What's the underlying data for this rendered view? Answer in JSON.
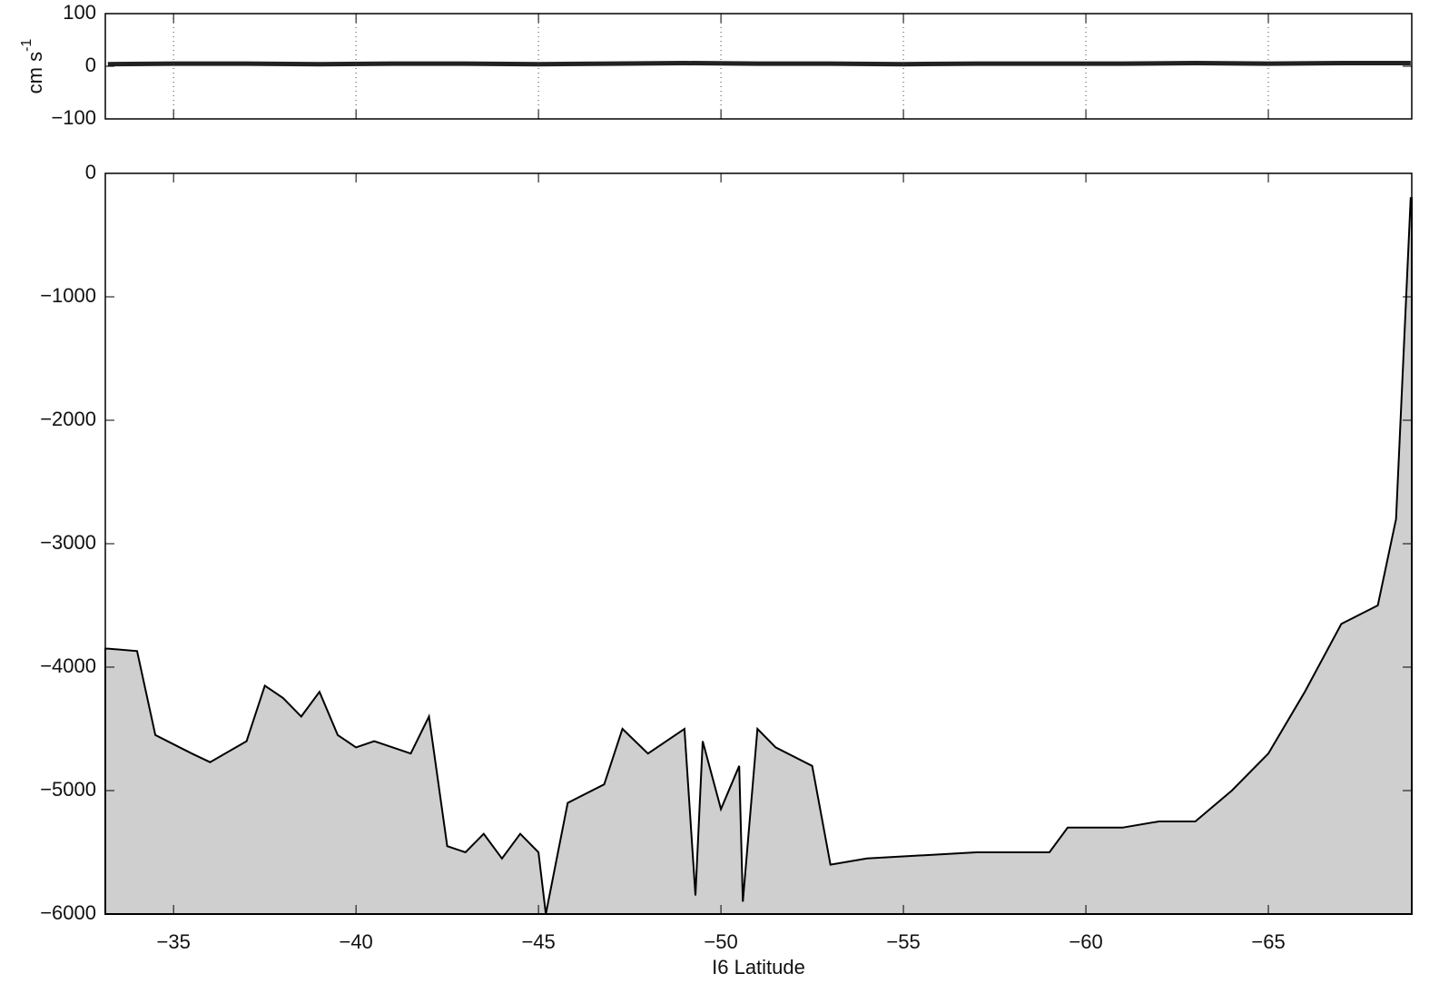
{
  "chart_data": [
    {
      "type": "line",
      "ylabel": "cm s",
      "ylabel_exponent": "-1",
      "xlim": [
        -33.13,
        -68.93
      ],
      "ylim": [
        -100,
        100
      ],
      "yticks": [
        100,
        0,
        {
          "value": -100,
          "label": "−100"
        }
      ],
      "xticks": [
        -35,
        -40,
        -45,
        -50,
        -55,
        -60,
        -65
      ],
      "grid": "dotted",
      "x": [
        -33.2,
        -35,
        -37,
        -39,
        -41,
        -43,
        -45,
        -47,
        -49,
        -51,
        -53,
        -55,
        -57,
        -59,
        -61,
        -63,
        -65,
        -67,
        -68.9
      ],
      "series": [
        {
          "color": "#222",
          "values": [
            4,
            5,
            5,
            4,
            5,
            5,
            4,
            5,
            6,
            5,
            5,
            4,
            5,
            5,
            5,
            6,
            5,
            6,
            6
          ]
        }
      ]
    },
    {
      "type": "area",
      "xlabel": "I6 Latitude",
      "xlim": [
        -33.13,
        -68.93
      ],
      "ylim": [
        -6000,
        0
      ],
      "yticks": [
        0,
        {
          "value": -1000,
          "label": "−1000"
        },
        {
          "value": -2000,
          "label": "−2000"
        },
        {
          "value": -3000,
          "label": "−3000"
        },
        {
          "value": -4000,
          "label": "−4000"
        },
        {
          "value": -5000,
          "label": "−5000"
        },
        {
          "value": -6000,
          "label": "−6000"
        }
      ],
      "xticks": [
        {
          "value": -35,
          "label": "−35"
        },
        {
          "value": -40,
          "label": "−40"
        },
        {
          "value": -45,
          "label": "−45"
        },
        {
          "value": -50,
          "label": "−50"
        },
        {
          "value": -55,
          "label": "−55"
        },
        {
          "value": -60,
          "label": "−60"
        },
        {
          "value": -65,
          "label": "−65"
        }
      ],
      "x": [
        -33.2,
        -34,
        -34.5,
        -35.5,
        -36,
        -37,
        -37.5,
        -38,
        -38.5,
        -39,
        -39.5,
        -40,
        -40.5,
        -41.5,
        -42,
        -42.5,
        -43,
        -43.5,
        -44,
        -44.5,
        -45,
        -45.2,
        -45.8,
        -46.8,
        -47.3,
        -48,
        -49,
        -49.3,
        -49.5,
        -50,
        -50.5,
        -50.6,
        -51,
        -51.5,
        -52.5,
        -53,
        -54,
        -57,
        -59,
        -59.5,
        -61,
        -62,
        -63,
        -64,
        -65,
        -66,
        -67,
        -68,
        -68.5,
        -68.9
      ],
      "series": [
        {
          "color": "#cfcfcf",
          "values": [
            -3850,
            -3870,
            -4550,
            -4700,
            -4770,
            -4600,
            -4150,
            -4250,
            -4400,
            -4200,
            -4550,
            -4650,
            -4600,
            -4700,
            -4400,
            -5450,
            -5500,
            -5350,
            -5550,
            -5350,
            -5500,
            -6000,
            -5100,
            -4950,
            -4500,
            -4700,
            -4500,
            -5850,
            -4600,
            -5150,
            -4800,
            -5900,
            -4500,
            -4650,
            -4800,
            -5600,
            -5550,
            -5500,
            -5500,
            -5300,
            -5300,
            -5250,
            -5250,
            -5000,
            -4700,
            -4200,
            -3650,
            -3500,
            -2800,
            -200
          ]
        }
      ]
    }
  ]
}
